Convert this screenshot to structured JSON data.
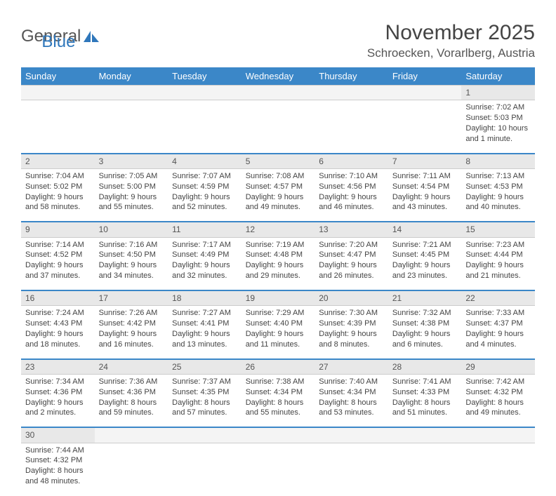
{
  "logo": {
    "part1": "General",
    "part2": "Blue"
  },
  "title": "November 2025",
  "location": "Schroecken, Vorarlberg, Austria",
  "colors": {
    "header_bg": "#3b87c8",
    "header_text": "#ffffff",
    "daynum_bg": "#e8e8e8",
    "row_divider": "#3b87c8",
    "text": "#444444",
    "logo_blue": "#2f77bb"
  },
  "weekdays": [
    "Sunday",
    "Monday",
    "Tuesday",
    "Wednesday",
    "Thursday",
    "Friday",
    "Saturday"
  ],
  "weeks": [
    [
      null,
      null,
      null,
      null,
      null,
      null,
      {
        "n": "1",
        "sr": "Sunrise: 7:02 AM",
        "ss": "Sunset: 5:03 PM",
        "dl": "Daylight: 10 hours and 1 minute."
      }
    ],
    [
      {
        "n": "2",
        "sr": "Sunrise: 7:04 AM",
        "ss": "Sunset: 5:02 PM",
        "dl": "Daylight: 9 hours and 58 minutes."
      },
      {
        "n": "3",
        "sr": "Sunrise: 7:05 AM",
        "ss": "Sunset: 5:00 PM",
        "dl": "Daylight: 9 hours and 55 minutes."
      },
      {
        "n": "4",
        "sr": "Sunrise: 7:07 AM",
        "ss": "Sunset: 4:59 PM",
        "dl": "Daylight: 9 hours and 52 minutes."
      },
      {
        "n": "5",
        "sr": "Sunrise: 7:08 AM",
        "ss": "Sunset: 4:57 PM",
        "dl": "Daylight: 9 hours and 49 minutes."
      },
      {
        "n": "6",
        "sr": "Sunrise: 7:10 AM",
        "ss": "Sunset: 4:56 PM",
        "dl": "Daylight: 9 hours and 46 minutes."
      },
      {
        "n": "7",
        "sr": "Sunrise: 7:11 AM",
        "ss": "Sunset: 4:54 PM",
        "dl": "Daylight: 9 hours and 43 minutes."
      },
      {
        "n": "8",
        "sr": "Sunrise: 7:13 AM",
        "ss": "Sunset: 4:53 PM",
        "dl": "Daylight: 9 hours and 40 minutes."
      }
    ],
    [
      {
        "n": "9",
        "sr": "Sunrise: 7:14 AM",
        "ss": "Sunset: 4:52 PM",
        "dl": "Daylight: 9 hours and 37 minutes."
      },
      {
        "n": "10",
        "sr": "Sunrise: 7:16 AM",
        "ss": "Sunset: 4:50 PM",
        "dl": "Daylight: 9 hours and 34 minutes."
      },
      {
        "n": "11",
        "sr": "Sunrise: 7:17 AM",
        "ss": "Sunset: 4:49 PM",
        "dl": "Daylight: 9 hours and 32 minutes."
      },
      {
        "n": "12",
        "sr": "Sunrise: 7:19 AM",
        "ss": "Sunset: 4:48 PM",
        "dl": "Daylight: 9 hours and 29 minutes."
      },
      {
        "n": "13",
        "sr": "Sunrise: 7:20 AM",
        "ss": "Sunset: 4:47 PM",
        "dl": "Daylight: 9 hours and 26 minutes."
      },
      {
        "n": "14",
        "sr": "Sunrise: 7:21 AM",
        "ss": "Sunset: 4:45 PM",
        "dl": "Daylight: 9 hours and 23 minutes."
      },
      {
        "n": "15",
        "sr": "Sunrise: 7:23 AM",
        "ss": "Sunset: 4:44 PM",
        "dl": "Daylight: 9 hours and 21 minutes."
      }
    ],
    [
      {
        "n": "16",
        "sr": "Sunrise: 7:24 AM",
        "ss": "Sunset: 4:43 PM",
        "dl": "Daylight: 9 hours and 18 minutes."
      },
      {
        "n": "17",
        "sr": "Sunrise: 7:26 AM",
        "ss": "Sunset: 4:42 PM",
        "dl": "Daylight: 9 hours and 16 minutes."
      },
      {
        "n": "18",
        "sr": "Sunrise: 7:27 AM",
        "ss": "Sunset: 4:41 PM",
        "dl": "Daylight: 9 hours and 13 minutes."
      },
      {
        "n": "19",
        "sr": "Sunrise: 7:29 AM",
        "ss": "Sunset: 4:40 PM",
        "dl": "Daylight: 9 hours and 11 minutes."
      },
      {
        "n": "20",
        "sr": "Sunrise: 7:30 AM",
        "ss": "Sunset: 4:39 PM",
        "dl": "Daylight: 9 hours and 8 minutes."
      },
      {
        "n": "21",
        "sr": "Sunrise: 7:32 AM",
        "ss": "Sunset: 4:38 PM",
        "dl": "Daylight: 9 hours and 6 minutes."
      },
      {
        "n": "22",
        "sr": "Sunrise: 7:33 AM",
        "ss": "Sunset: 4:37 PM",
        "dl": "Daylight: 9 hours and 4 minutes."
      }
    ],
    [
      {
        "n": "23",
        "sr": "Sunrise: 7:34 AM",
        "ss": "Sunset: 4:36 PM",
        "dl": "Daylight: 9 hours and 2 minutes."
      },
      {
        "n": "24",
        "sr": "Sunrise: 7:36 AM",
        "ss": "Sunset: 4:36 PM",
        "dl": "Daylight: 8 hours and 59 minutes."
      },
      {
        "n": "25",
        "sr": "Sunrise: 7:37 AM",
        "ss": "Sunset: 4:35 PM",
        "dl": "Daylight: 8 hours and 57 minutes."
      },
      {
        "n": "26",
        "sr": "Sunrise: 7:38 AM",
        "ss": "Sunset: 4:34 PM",
        "dl": "Daylight: 8 hours and 55 minutes."
      },
      {
        "n": "27",
        "sr": "Sunrise: 7:40 AM",
        "ss": "Sunset: 4:34 PM",
        "dl": "Daylight: 8 hours and 53 minutes."
      },
      {
        "n": "28",
        "sr": "Sunrise: 7:41 AM",
        "ss": "Sunset: 4:33 PM",
        "dl": "Daylight: 8 hours and 51 minutes."
      },
      {
        "n": "29",
        "sr": "Sunrise: 7:42 AM",
        "ss": "Sunset: 4:32 PM",
        "dl": "Daylight: 8 hours and 49 minutes."
      }
    ],
    [
      {
        "n": "30",
        "sr": "Sunrise: 7:44 AM",
        "ss": "Sunset: 4:32 PM",
        "dl": "Daylight: 8 hours and 48 minutes."
      },
      null,
      null,
      null,
      null,
      null,
      null
    ]
  ]
}
